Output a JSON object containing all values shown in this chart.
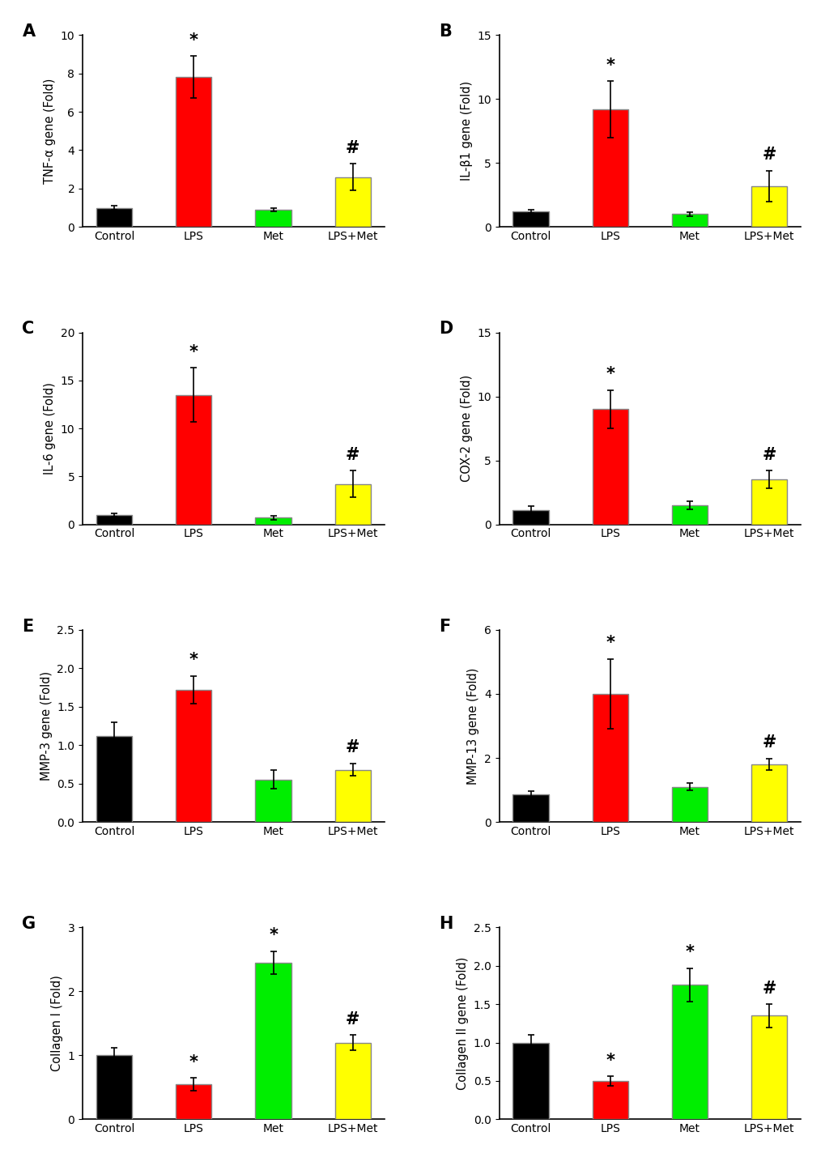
{
  "panels": [
    {
      "label": "A",
      "ylabel": "TNF-α gene (Fold)",
      "categories": [
        "Control",
        "LPS",
        "Met",
        "LPS+Met"
      ],
      "values": [
        1.0,
        7.8,
        0.9,
        2.6
      ],
      "errors": [
        0.1,
        1.1,
        0.08,
        0.7
      ],
      "colors": [
        "#000000",
        "#ff0000",
        "#00ee00",
        "#ffff00"
      ],
      "ylim": [
        0,
        10
      ],
      "yticks": [
        0,
        2,
        4,
        6,
        8,
        10
      ],
      "sig_bars": [
        {
          "bar_idx": 1,
          "symbol": "*"
        },
        {
          "bar_idx": 3,
          "symbol": "#"
        }
      ]
    },
    {
      "label": "B",
      "ylabel": "IL-β1 gene (Fold)",
      "categories": [
        "Control",
        "LPS",
        "Met",
        "LPS+Met"
      ],
      "values": [
        1.2,
        9.2,
        1.0,
        3.2
      ],
      "errors": [
        0.12,
        2.2,
        0.15,
        1.2
      ],
      "colors": [
        "#000000",
        "#ff0000",
        "#00ee00",
        "#ffff00"
      ],
      "ylim": [
        0,
        15
      ],
      "yticks": [
        0,
        5,
        10,
        15
      ],
      "sig_bars": [
        {
          "bar_idx": 1,
          "symbol": "*"
        },
        {
          "bar_idx": 3,
          "symbol": "#"
        }
      ]
    },
    {
      "label": "C",
      "ylabel": "IL-6 gene (Fold)",
      "categories": [
        "Control",
        "LPS",
        "Met",
        "LPS+Met"
      ],
      "values": [
        1.0,
        13.5,
        0.7,
        4.2
      ],
      "errors": [
        0.15,
        2.8,
        0.2,
        1.4
      ],
      "colors": [
        "#000000",
        "#ff0000",
        "#00ee00",
        "#ffff00"
      ],
      "ylim": [
        0,
        20
      ],
      "yticks": [
        0,
        5,
        10,
        15,
        20
      ],
      "sig_bars": [
        {
          "bar_idx": 1,
          "symbol": "*"
        },
        {
          "bar_idx": 3,
          "symbol": "#"
        }
      ]
    },
    {
      "label": "D",
      "ylabel": "COX-2 gene (Fold)",
      "categories": [
        "Control",
        "LPS",
        "Met",
        "LPS+Met"
      ],
      "values": [
        1.1,
        9.0,
        1.5,
        3.5
      ],
      "errors": [
        0.3,
        1.5,
        0.3,
        0.7
      ],
      "colors": [
        "#000000",
        "#ff0000",
        "#00ee00",
        "#ffff00"
      ],
      "ylim": [
        0,
        15
      ],
      "yticks": [
        0,
        5,
        10,
        15
      ],
      "sig_bars": [
        {
          "bar_idx": 1,
          "symbol": "*"
        },
        {
          "bar_idx": 3,
          "symbol": "#"
        }
      ]
    },
    {
      "label": "E",
      "ylabel": "MMP-3 gene (Fold)",
      "categories": [
        "Control",
        "LPS",
        "Met",
        "LPS+Met"
      ],
      "values": [
        1.12,
        1.72,
        0.55,
        0.68
      ],
      "errors": [
        0.18,
        0.18,
        0.12,
        0.08
      ],
      "colors": [
        "#000000",
        "#ff0000",
        "#00ee00",
        "#ffff00"
      ],
      "ylim": [
        0,
        2.5
      ],
      "yticks": [
        0.0,
        0.5,
        1.0,
        1.5,
        2.0,
        2.5
      ],
      "sig_bars": [
        {
          "bar_idx": 1,
          "symbol": "*"
        },
        {
          "bar_idx": 3,
          "symbol": "#"
        }
      ]
    },
    {
      "label": "F",
      "ylabel": "MMP-13 gene (Fold)",
      "categories": [
        "Control",
        "LPS",
        "Met",
        "LPS+Met"
      ],
      "values": [
        0.85,
        4.0,
        1.1,
        1.8
      ],
      "errors": [
        0.12,
        1.1,
        0.12,
        0.18
      ],
      "colors": [
        "#000000",
        "#ff0000",
        "#00ee00",
        "#ffff00"
      ],
      "ylim": [
        0,
        6
      ],
      "yticks": [
        0,
        2,
        4,
        6
      ],
      "sig_bars": [
        {
          "bar_idx": 1,
          "symbol": "*"
        },
        {
          "bar_idx": 3,
          "symbol": "#"
        }
      ]
    },
    {
      "label": "G",
      "ylabel": "Collagen I (Fold)",
      "categories": [
        "Control",
        "LPS",
        "Met",
        "LPS+Met"
      ],
      "values": [
        1.0,
        0.55,
        2.45,
        1.2
      ],
      "errors": [
        0.12,
        0.1,
        0.18,
        0.12
      ],
      "colors": [
        "#000000",
        "#ff0000",
        "#00ee00",
        "#ffff00"
      ],
      "ylim": [
        0,
        3
      ],
      "yticks": [
        0,
        1,
        2,
        3
      ],
      "sig_bars": [
        {
          "bar_idx": 1,
          "symbol": "*"
        },
        {
          "bar_idx": 2,
          "symbol": "*"
        },
        {
          "bar_idx": 3,
          "symbol": "#"
        }
      ]
    },
    {
      "label": "H",
      "ylabel": "Collagen II gene (Fold)",
      "categories": [
        "Control",
        "LPS",
        "Met",
        "LPS+Met"
      ],
      "values": [
        1.0,
        0.5,
        1.75,
        1.35
      ],
      "errors": [
        0.1,
        0.06,
        0.22,
        0.15
      ],
      "colors": [
        "#000000",
        "#ff0000",
        "#00ee00",
        "#ffff00"
      ],
      "ylim": [
        0,
        2.5
      ],
      "yticks": [
        0.0,
        0.5,
        1.0,
        1.5,
        2.0,
        2.5
      ],
      "sig_bars": [
        {
          "bar_idx": 1,
          "symbol": "*"
        },
        {
          "bar_idx": 2,
          "symbol": "*"
        },
        {
          "bar_idx": 3,
          "symbol": "#"
        }
      ]
    }
  ],
  "bar_width": 0.45,
  "edgecolor": "#888888",
  "edgewidth": 1.0,
  "errorbar_color": "#000000",
  "errorbar_capsize": 3,
  "errorbar_linewidth": 1.2,
  "background_color": "#ffffff",
  "fontsize_label": 10.5,
  "fontsize_tick": 10,
  "fontsize_panel_label": 15,
  "fontsize_sig": 15
}
